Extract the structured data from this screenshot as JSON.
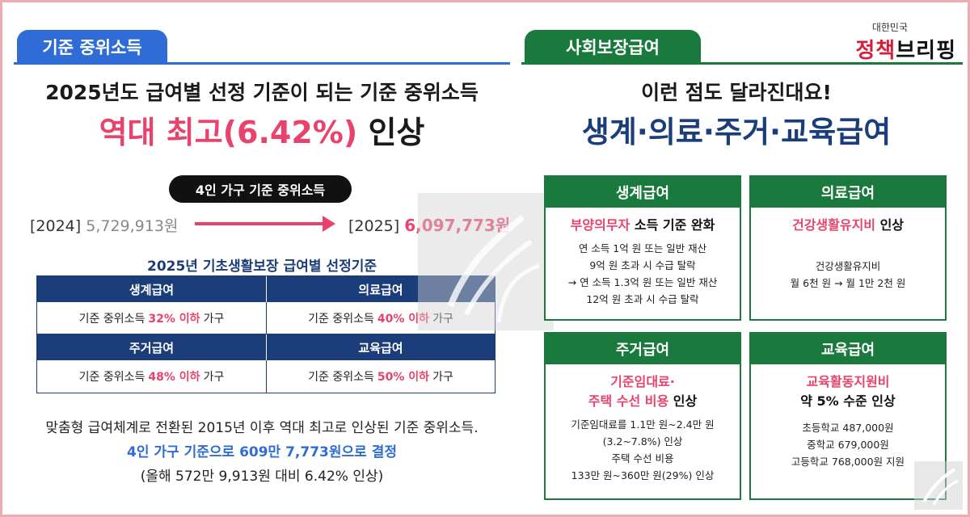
{
  "left": {
    "tab": "기준 중위소득",
    "subtitle": "2025년도 급여별 선정 기준이 되는 기준 중위소득",
    "headline_pink": "역대 최고(6.42%)",
    "headline_rest": " 인상",
    "pill": "4인 가구 기준 중위소득",
    "old_year": "[2024]",
    "old_value": "5,729,913원",
    "new_year": "[2025]",
    "new_value": "6,097,773원",
    "table_caption": "2025년 기초생활보장 급여별 선정기준",
    "table": [
      {
        "name": "생계급여",
        "prefix": "기준 중위소득",
        "pct": "32% 이하",
        "suffix": "가구"
      },
      {
        "name": "의료급여",
        "prefix": "기준 중위소득",
        "pct": "40% 이하",
        "suffix": "가구"
      },
      {
        "name": "주거급여",
        "prefix": "기준 중위소득",
        "pct": "48% 이하",
        "suffix": "가구"
      },
      {
        "name": "교육급여",
        "prefix": "기준 중위소득",
        "pct": "50% 이하",
        "suffix": "가구"
      }
    ],
    "foot1": "맞춤형 급여체계로 전환된 2015년 이후 역대 최고로 인상된 기준 중위소득.",
    "foot2": "4인 가구 기준으로 609만 7,773원으로 결정",
    "foot3": "(올해 572만 9,913원 대비 6.42% 인상)"
  },
  "right": {
    "tab": "사회보장급여",
    "brand_top": "대한민국",
    "brand_main_a": "정책",
    "brand_main_b": "브리핑",
    "subtitle": "이런 점도 달라진대요!",
    "headline": "생계·의료·주거·교육급여",
    "cards": [
      {
        "name": "생계급여",
        "title_pink": "부양의무자",
        "title_rest": " 소득 기준 완화",
        "lines": [
          "연 소득 1억 원 또는 일반 재산",
          "9억 원 초과 시 수급 탈락",
          "→ 연 소득 1.3억 원 또는 일반 재산",
          "12억 원 초과 시 수급 탈락"
        ]
      },
      {
        "name": "의료급여",
        "title_pink": "건강생활유지비",
        "title_rest": " 인상",
        "lines": [
          "건강생활유지비",
          "월 6천 원 → 월 1만 2천 원"
        ]
      },
      {
        "name": "주거급여",
        "title_pink": "기준임대료·",
        "title_pink2": "주택 수선 비용",
        "title_rest": " 인상",
        "lines": [
          "기준임대료를 1.1만 원~2.4만 원",
          "(3.2~7.8%) 인상",
          "주택 수선 비용",
          "133만 원~360만 원(29%) 인상"
        ]
      },
      {
        "name": "교육급여",
        "title_pink": "교육활동지원비",
        "title_rest2": "약 5% 수준 인상",
        "lines": [
          "초등학교 487,000원",
          "중학교 679,000원",
          "고등학교 768,000원 지원"
        ]
      }
    ]
  },
  "colors": {
    "blue": "#2f6cd6",
    "navy": "#1b3d7a",
    "green": "#1a7a3e",
    "pink": "#e8436c",
    "border": "#f0aab6"
  }
}
